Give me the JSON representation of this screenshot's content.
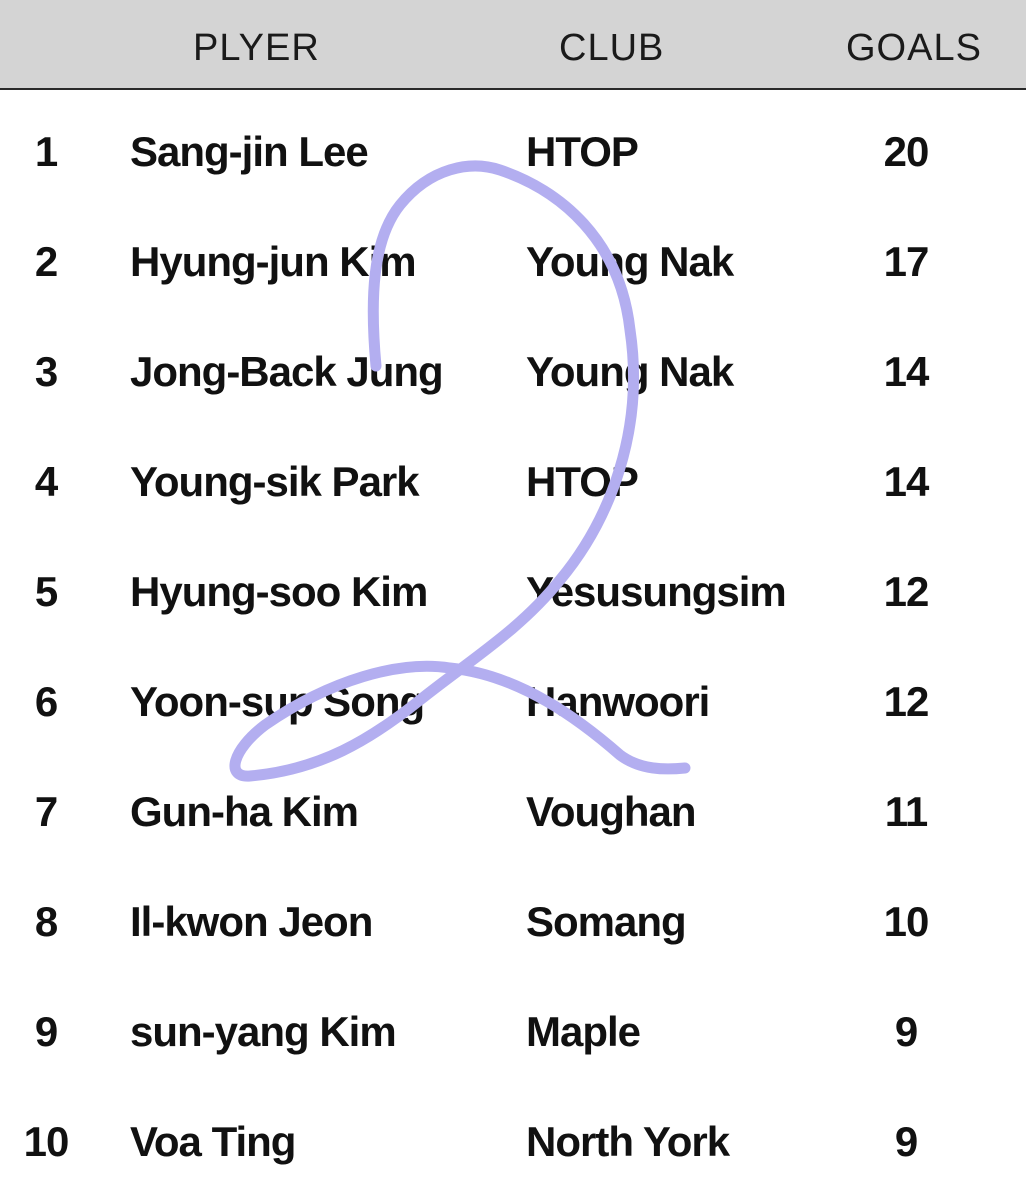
{
  "table": {
    "headers": {
      "player": "PLYER",
      "club": "CLUB",
      "goals": "GOALS"
    },
    "rows": [
      {
        "rank": "1",
        "player": "Sang-jin Lee",
        "club": "HTOP",
        "goals": "20"
      },
      {
        "rank": "2",
        "player": "Hyung-jun Kim",
        "club": "Young Nak",
        "goals": "17"
      },
      {
        "rank": "3",
        "player": "Jong-Back Jung",
        "club": "Young Nak",
        "goals": "14"
      },
      {
        "rank": "4",
        "player": "Young-sik Park",
        "club": "HTOP",
        "goals": "14"
      },
      {
        "rank": "5",
        "player": "Hyung-soo Kim",
        "club": "Yesusungsim",
        "goals": "12"
      },
      {
        "rank": "6",
        "player": "Yoon-sup Song",
        "club": "Hanwoori",
        "goals": "12"
      },
      {
        "rank": "7",
        "player": "Gun-ha Kim",
        "club": "Voughan",
        "goals": "11"
      },
      {
        "rank": "8",
        "player": "Il-kwon Jeon",
        "club": "Somang",
        "goals": "10"
      },
      {
        "rank": "9",
        "player": "sun-yang Kim",
        "club": "Maple",
        "goals": "9"
      },
      {
        "rank": "10",
        "player": "Voa Ting",
        "club": "North York",
        "goals": "9"
      }
    ]
  },
  "colors": {
    "header_bg": "#d4d4d4",
    "text": "#111111",
    "annotation_stroke": "#b3aef0"
  },
  "annotation": {
    "icon": "handwritten-number-annotation"
  }
}
